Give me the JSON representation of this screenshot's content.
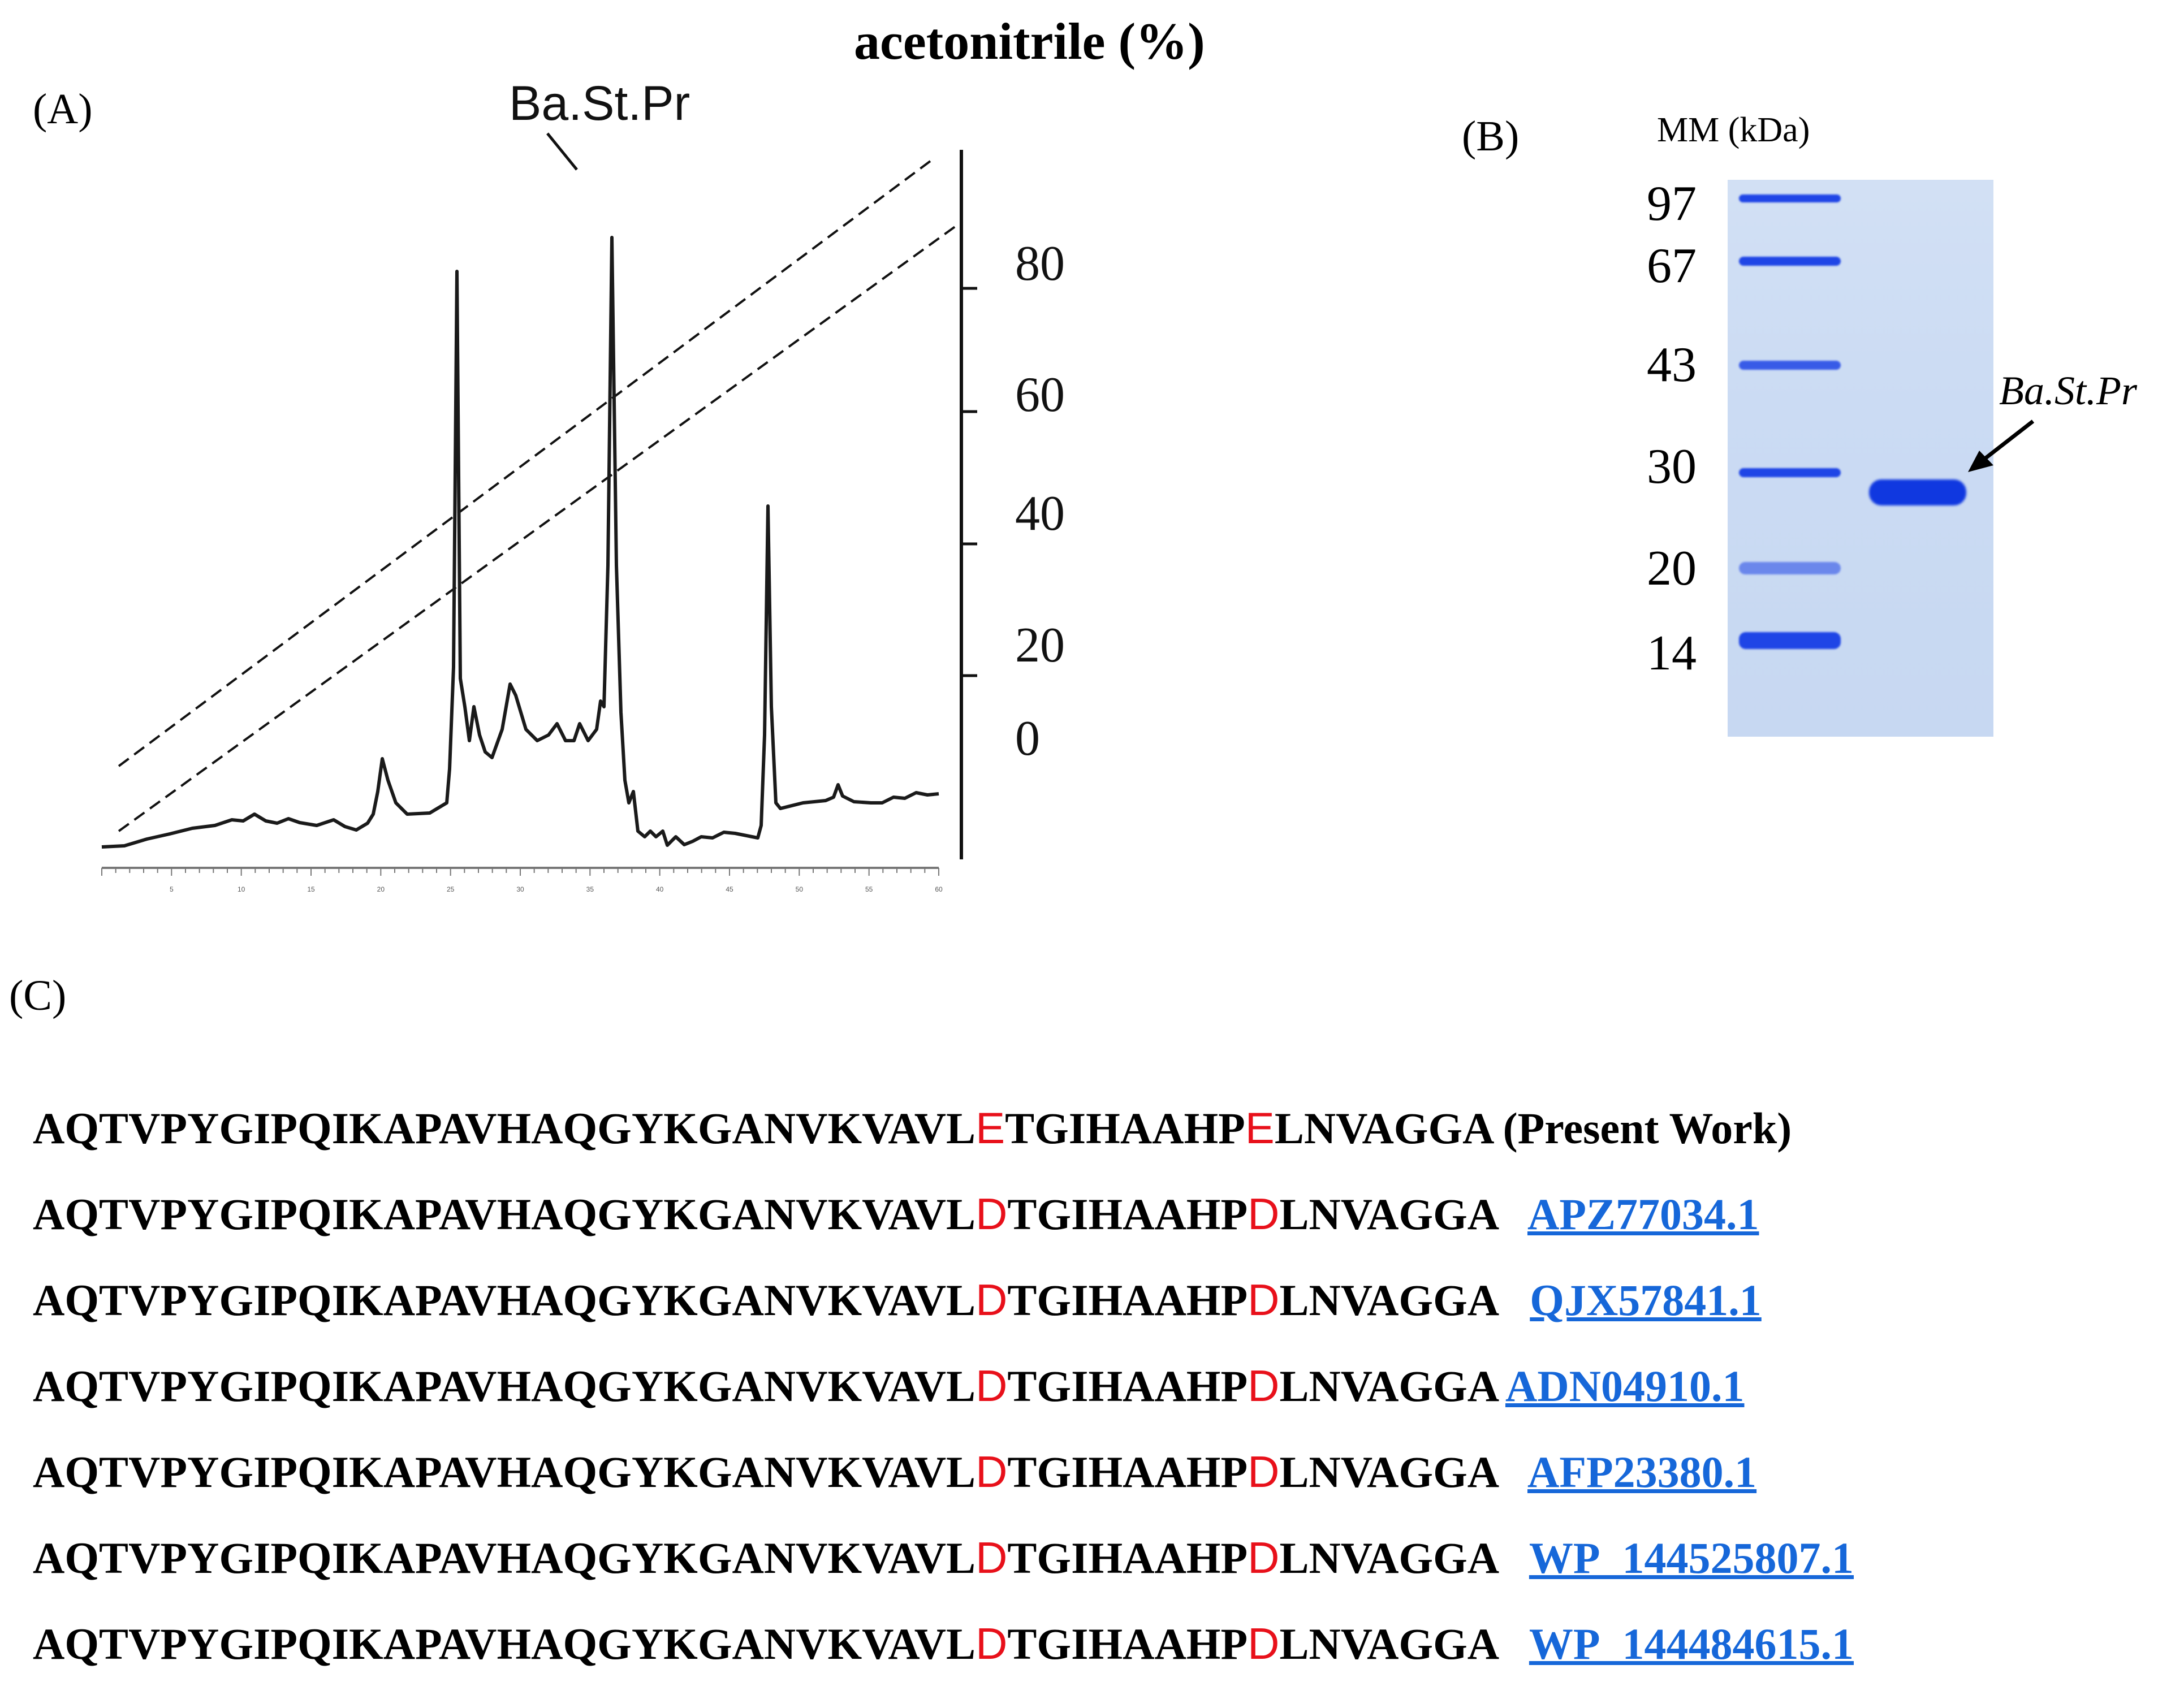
{
  "panelA": {
    "label": "(A)",
    "title": "acetonitrile (%)",
    "peak_label": "Ba.St.Pr",
    "yaxis_ticks": [
      "80",
      "60",
      "40",
      "20",
      "0"
    ],
    "xaxis_ticks": [
      "5",
      "10",
      "15",
      "20",
      "25",
      "30",
      "35",
      "40",
      "45",
      "50",
      "55",
      "60"
    ]
  },
  "panelB": {
    "label": "(B)",
    "header": "MM (kDa)",
    "ladder": [
      "97",
      "67",
      "43",
      "30",
      "20",
      "14"
    ],
    "band_label": "Ba.St.Pr"
  },
  "panelC": {
    "label": "(C)",
    "rows": [
      {
        "pre": "AQTVPYGIPQIKAPAVHAQGYKGANVKVAVL",
        "r1": "E",
        "mid": "TGIHAAHP",
        "r2": "E",
        "post": "LNVAGGA",
        "sep": " ",
        "tag": "(Present Work)",
        "link": ""
      },
      {
        "pre": "AQTVPYGIPQIKAPAVHAQGYKGANVKVAVL",
        "r1": "D",
        "mid": "TGIHAAHP",
        "r2": "D",
        "post": "LNVAGGA",
        "sep": "   ",
        "tag": "",
        "link": "APZ77034.1"
      },
      {
        "pre": "AQTVPYGIPQIKAPAVHAQGYKGANVKVAVL",
        "r1": "D",
        "mid": "TGIHAAHP",
        "r2": "D",
        "post": "LNVAGGA",
        "sep": "   ",
        "tag": "",
        "link": "QJX57841.1"
      },
      {
        "pre": "AQTVPYGIPQIKAPAVHAQGYKGANVKVAVL",
        "r1": "D",
        "mid": "TGIHAAHP",
        "r2": "D",
        "post": "LNVAGGA",
        "sep": " ",
        "tag": "",
        "link": "ADN04910.1"
      },
      {
        "pre": "AQTVPYGIPQIKAPAVHAQGYKGANVKVAVL",
        "r1": "D",
        "mid": "TGIHAAHP",
        "r2": "D",
        "post": "LNVAGGA",
        "sep": "   ",
        "tag": "",
        "link": "AFP23380.1"
      },
      {
        "pre": "AQTVPYGIPQIKAPAVHAQGYKGANVKVAVL",
        "r1": "D",
        "mid": "TGIHAAHP",
        "r2": "D",
        "post": "LNVAGGA",
        "sep": "   ",
        "tag": "",
        "link": "WP_144525807.1"
      },
      {
        "pre": "AQTVPYGIPQIKAPAVHAQGYKGANVKVAVL",
        "r1": "D",
        "mid": "TGIHAAHP",
        "r2": "D",
        "post": "LNVAGGA",
        "sep": "   ",
        "tag": "",
        "link": "WP_144484615.1"
      }
    ]
  }
}
